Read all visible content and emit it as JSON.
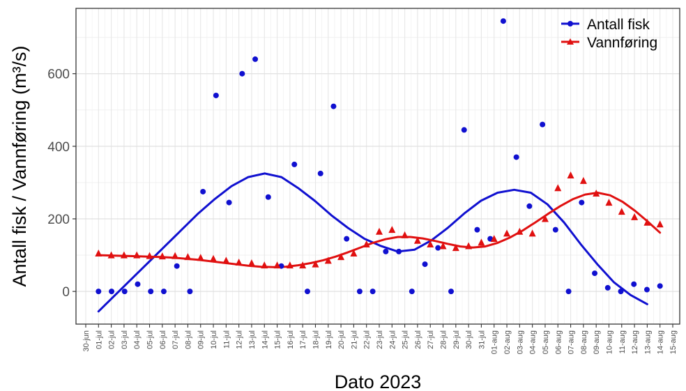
{
  "chart_data": {
    "type": "scatter",
    "title": "",
    "xlabel": "Dato 2023",
    "ylabel": "Antall fisk / Vannføring (m³/s)",
    "ylim": [
      -90,
      780
    ],
    "yticks": [
      0,
      200,
      400,
      600
    ],
    "grid": true,
    "legend_position": "top-right",
    "x_ticks": [
      "30-jun",
      "01-jul",
      "02-jul",
      "03-jul",
      "04-jul",
      "05-jul",
      "06-jul",
      "07-jul",
      "08-jul",
      "09-jul",
      "10-jul",
      "11-jul",
      "12-jul",
      "13-jul",
      "14-jul",
      "15-jul",
      "16-jul",
      "17-jul",
      "18-jul",
      "19-jul",
      "20-jul",
      "21-jul",
      "22-jul",
      "23-jul",
      "24-jul",
      "25-jul",
      "26-jul",
      "27-jul",
      "28-jul",
      "29-jul",
      "30-jul",
      "31-jul",
      "01-aug",
      "02-aug",
      "03-aug",
      "04-aug",
      "05-aug",
      "06-aug",
      "07-aug",
      "08-aug",
      "09-aug",
      "10-aug",
      "11-aug",
      "12-aug",
      "13-aug",
      "14-aug",
      "15-aug"
    ],
    "series": [
      {
        "name": "Antall fisk",
        "color": "#1010d0",
        "marker": "circle",
        "values": [
          0,
          0,
          0,
          20,
          0,
          0,
          70,
          0,
          275,
          540,
          245,
          600,
          640,
          260,
          70,
          350,
          0,
          325,
          510,
          145,
          0,
          0,
          110,
          110,
          0,
          75,
          120,
          0,
          445,
          170,
          145,
          745,
          370,
          235,
          460,
          170,
          0,
          245,
          50,
          10,
          0,
          20,
          5,
          15
        ],
        "smooth": [
          -55,
          -10,
          35,
          80,
          125,
          170,
          215,
          255,
          290,
          315,
          325,
          315,
          285,
          250,
          210,
          175,
          145,
          125,
          110,
          115,
          140,
          175,
          215,
          250,
          272,
          280,
          272,
          240,
          190,
          130,
          75,
          25,
          -10,
          -35
        ]
      },
      {
        "name": "Vannføring",
        "color": "#e01010",
        "marker": "triangle",
        "values": [
          105,
          100,
          100,
          100,
          98,
          97,
          98,
          95,
          93,
          90,
          85,
          80,
          78,
          72,
          72,
          72,
          72,
          75,
          85,
          95,
          105,
          130,
          165,
          170,
          155,
          140,
          130,
          125,
          120,
          125,
          135,
          145,
          160,
          165,
          160,
          200,
          285,
          320,
          305,
          270,
          245,
          220,
          205,
          190,
          185
        ],
        "smooth": [
          100,
          99,
          98,
          97,
          96,
          95,
          93,
          90,
          87,
          83,
          79,
          75,
          71,
          68,
          67,
          68,
          72,
          78,
          86,
          96,
          108,
          121,
          134,
          144,
          150,
          150,
          146,
          139,
          131,
          124,
          121,
          124,
          134,
          149,
          168,
          190,
          213,
          235,
          254,
          267,
          272,
          265,
          247,
          222,
          193,
          162
        ]
      }
    ]
  }
}
